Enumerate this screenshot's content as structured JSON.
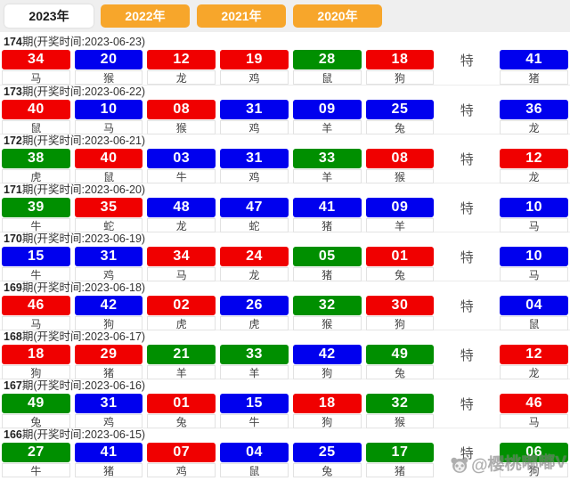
{
  "tabs": [
    {
      "label": "2023年",
      "active": true
    },
    {
      "label": "2022年",
      "active": false
    },
    {
      "label": "2021年",
      "active": false
    },
    {
      "label": "2020年",
      "active": false
    }
  ],
  "labels": {
    "header_prefix": "期(开奖时间:",
    "header_suffix": ")",
    "special": "特"
  },
  "colors": {
    "red": "#f00000",
    "blue": "#0000ee",
    "green": "#008f00",
    "tab_orange": "#f7a62b"
  },
  "watermark": {
    "icon": "panda-icon",
    "text": "@樱桃嘟嘟V"
  },
  "draws": [
    {
      "period": "174",
      "date": "2023-06-23",
      "numbers": [
        {
          "n": "34",
          "c": "red",
          "z": "马"
        },
        {
          "n": "20",
          "c": "blue",
          "z": "猴"
        },
        {
          "n": "12",
          "c": "red",
          "z": "龙"
        },
        {
          "n": "19",
          "c": "red",
          "z": "鸡"
        },
        {
          "n": "28",
          "c": "green",
          "z": "鼠"
        },
        {
          "n": "18",
          "c": "red",
          "z": "狗"
        }
      ],
      "special": {
        "n": "41",
        "c": "blue",
        "z": "猪"
      }
    },
    {
      "period": "173",
      "date": "2023-06-22",
      "numbers": [
        {
          "n": "40",
          "c": "red",
          "z": "鼠"
        },
        {
          "n": "10",
          "c": "blue",
          "z": "马"
        },
        {
          "n": "08",
          "c": "red",
          "z": "猴"
        },
        {
          "n": "31",
          "c": "blue",
          "z": "鸡"
        },
        {
          "n": "09",
          "c": "blue",
          "z": "羊"
        },
        {
          "n": "25",
          "c": "blue",
          "z": "兔"
        }
      ],
      "special": {
        "n": "36",
        "c": "blue",
        "z": "龙"
      }
    },
    {
      "period": "172",
      "date": "2023-06-21",
      "numbers": [
        {
          "n": "38",
          "c": "green",
          "z": "虎"
        },
        {
          "n": "40",
          "c": "red",
          "z": "鼠"
        },
        {
          "n": "03",
          "c": "blue",
          "z": "牛"
        },
        {
          "n": "31",
          "c": "blue",
          "z": "鸡"
        },
        {
          "n": "33",
          "c": "green",
          "z": "羊"
        },
        {
          "n": "08",
          "c": "red",
          "z": "猴"
        }
      ],
      "special": {
        "n": "12",
        "c": "red",
        "z": "龙"
      }
    },
    {
      "period": "171",
      "date": "2023-06-20",
      "numbers": [
        {
          "n": "39",
          "c": "green",
          "z": "牛"
        },
        {
          "n": "35",
          "c": "red",
          "z": "蛇"
        },
        {
          "n": "48",
          "c": "blue",
          "z": "龙"
        },
        {
          "n": "47",
          "c": "blue",
          "z": "蛇"
        },
        {
          "n": "41",
          "c": "blue",
          "z": "猪"
        },
        {
          "n": "09",
          "c": "blue",
          "z": "羊"
        }
      ],
      "special": {
        "n": "10",
        "c": "blue",
        "z": "马"
      }
    },
    {
      "period": "170",
      "date": "2023-06-19",
      "numbers": [
        {
          "n": "15",
          "c": "blue",
          "z": "牛"
        },
        {
          "n": "31",
          "c": "blue",
          "z": "鸡"
        },
        {
          "n": "34",
          "c": "red",
          "z": "马"
        },
        {
          "n": "24",
          "c": "red",
          "z": "龙"
        },
        {
          "n": "05",
          "c": "green",
          "z": "猪"
        },
        {
          "n": "01",
          "c": "red",
          "z": "兔"
        }
      ],
      "special": {
        "n": "10",
        "c": "blue",
        "z": "马"
      }
    },
    {
      "period": "169",
      "date": "2023-06-18",
      "numbers": [
        {
          "n": "46",
          "c": "red",
          "z": "马"
        },
        {
          "n": "42",
          "c": "blue",
          "z": "狗"
        },
        {
          "n": "02",
          "c": "red",
          "z": "虎"
        },
        {
          "n": "26",
          "c": "blue",
          "z": "虎"
        },
        {
          "n": "32",
          "c": "green",
          "z": "猴"
        },
        {
          "n": "30",
          "c": "red",
          "z": "狗"
        }
      ],
      "special": {
        "n": "04",
        "c": "blue",
        "z": "鼠"
      }
    },
    {
      "period": "168",
      "date": "2023-06-17",
      "numbers": [
        {
          "n": "18",
          "c": "red",
          "z": "狗"
        },
        {
          "n": "29",
          "c": "red",
          "z": "猪"
        },
        {
          "n": "21",
          "c": "green",
          "z": "羊"
        },
        {
          "n": "33",
          "c": "green",
          "z": "羊"
        },
        {
          "n": "42",
          "c": "blue",
          "z": "狗"
        },
        {
          "n": "49",
          "c": "green",
          "z": "兔"
        }
      ],
      "special": {
        "n": "12",
        "c": "red",
        "z": "龙"
      }
    },
    {
      "period": "167",
      "date": "2023-06-16",
      "numbers": [
        {
          "n": "49",
          "c": "green",
          "z": "兔"
        },
        {
          "n": "31",
          "c": "blue",
          "z": "鸡"
        },
        {
          "n": "01",
          "c": "red",
          "z": "兔"
        },
        {
          "n": "15",
          "c": "blue",
          "z": "牛"
        },
        {
          "n": "18",
          "c": "red",
          "z": "狗"
        },
        {
          "n": "32",
          "c": "green",
          "z": "猴"
        }
      ],
      "special": {
        "n": "46",
        "c": "red",
        "z": "马"
      }
    },
    {
      "period": "166",
      "date": "2023-06-15",
      "numbers": [
        {
          "n": "27",
          "c": "green",
          "z": "牛"
        },
        {
          "n": "41",
          "c": "blue",
          "z": "猪"
        },
        {
          "n": "07",
          "c": "red",
          "z": "鸡"
        },
        {
          "n": "04",
          "c": "blue",
          "z": "鼠"
        },
        {
          "n": "25",
          "c": "blue",
          "z": "兔"
        },
        {
          "n": "17",
          "c": "green",
          "z": "猪"
        }
      ],
      "special": {
        "n": "06",
        "c": "green",
        "z": "狗"
      }
    }
  ]
}
